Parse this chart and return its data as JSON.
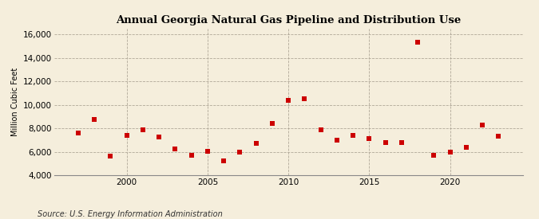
{
  "title": "Annual Georgia Natural Gas Pipeline and Distribution Use",
  "ylabel": "Million Cubic Feet",
  "source": "Source: U.S. Energy Information Administration",
  "background_color": "#f5eedc",
  "plot_bg_color": "#f5eedc",
  "marker_color": "#cc0000",
  "marker": "s",
  "marker_size": 4,
  "xlim": [
    1995.5,
    2024.5
  ],
  "ylim": [
    4000,
    16500
  ],
  "yticks": [
    4000,
    6000,
    8000,
    10000,
    12000,
    14000,
    16000
  ],
  "xticks": [
    2000,
    2005,
    2010,
    2015,
    2020
  ],
  "years": [
    1997,
    1998,
    1999,
    2000,
    2001,
    2002,
    2003,
    2004,
    2005,
    2006,
    2007,
    2008,
    2009,
    2010,
    2011,
    2012,
    2013,
    2014,
    2015,
    2016,
    2017,
    2018,
    2019,
    2020,
    2021,
    2022,
    2023
  ],
  "values": [
    7600,
    8750,
    5600,
    7400,
    7850,
    7250,
    6250,
    5700,
    6050,
    5200,
    6000,
    6700,
    8400,
    10400,
    10500,
    7900,
    7000,
    7400,
    7100,
    6800,
    6800,
    15300,
    5700,
    5950,
    6400,
    8300,
    7300
  ]
}
